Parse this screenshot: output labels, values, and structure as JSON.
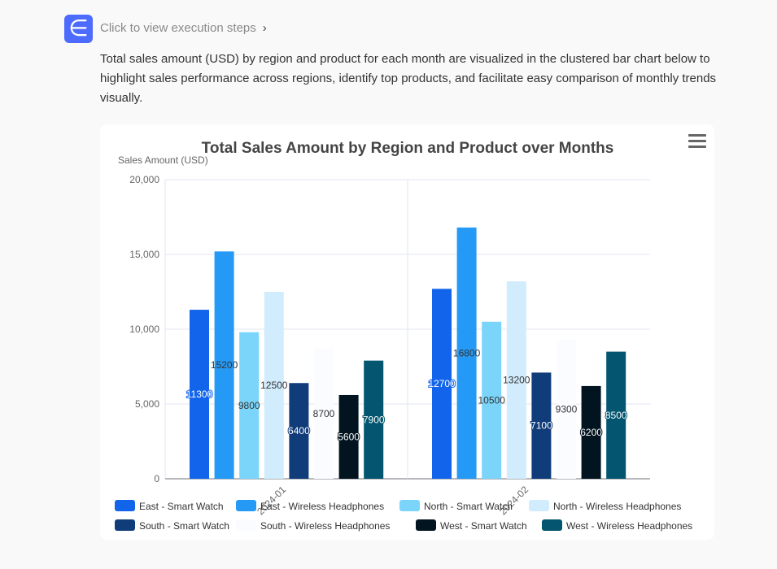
{
  "header": {
    "logo_icon": "deepseek-logo-icon",
    "steps_label": "Click to view execution steps",
    "chevron": "›"
  },
  "description": "Total sales amount (USD) by region and product for each month are visualized in the clustered bar chart below to highlight sales performance across regions, identify top products, and facilitate easy comparison of monthly trends visually.",
  "chart_data": {
    "type": "bar",
    "title": "Total Sales Amount by Region and Product over Months",
    "xlabel": "",
    "ylabel": "Sales Amount (USD)",
    "ylim": [
      0,
      20000
    ],
    "yticks": [
      "0",
      "5,000",
      "10,000",
      "15,000",
      "20,000"
    ],
    "categories": [
      "2024-01",
      "2024-02"
    ],
    "legend_position": "bottom",
    "series": [
      {
        "name": "East - Smart Watch",
        "color": "#1264eb",
        "label_color": "#ffffff",
        "values": [
          11300,
          12700
        ]
      },
      {
        "name": "East - Wireless Headphones",
        "color": "#2499f6",
        "label_color": "#333333",
        "values": [
          15200,
          16800
        ]
      },
      {
        "name": "North - Smart Watch",
        "color": "#7bd5fa",
        "label_color": "#333333",
        "values": [
          9800,
          10500
        ]
      },
      {
        "name": "North - Wireless Headphones",
        "color": "#d0ecfd",
        "label_color": "#333333",
        "values": [
          12500,
          13200
        ]
      },
      {
        "name": "South - Smart Watch",
        "color": "#113c7a",
        "label_color": "#ffffff",
        "values": [
          6400,
          7100
        ]
      },
      {
        "name": "South - Wireless Headphones",
        "color": "#fafcff",
        "label_color": "#333333",
        "values": [
          8700,
          9300
        ]
      },
      {
        "name": "West - Smart Watch",
        "color": "#021420",
        "label_color": "#ffffff",
        "values": [
          5600,
          6200
        ]
      },
      {
        "name": "West - Wireless Headphones",
        "color": "#035570",
        "label_color": "#ffffff",
        "values": [
          7900,
          8500
        ]
      }
    ]
  }
}
